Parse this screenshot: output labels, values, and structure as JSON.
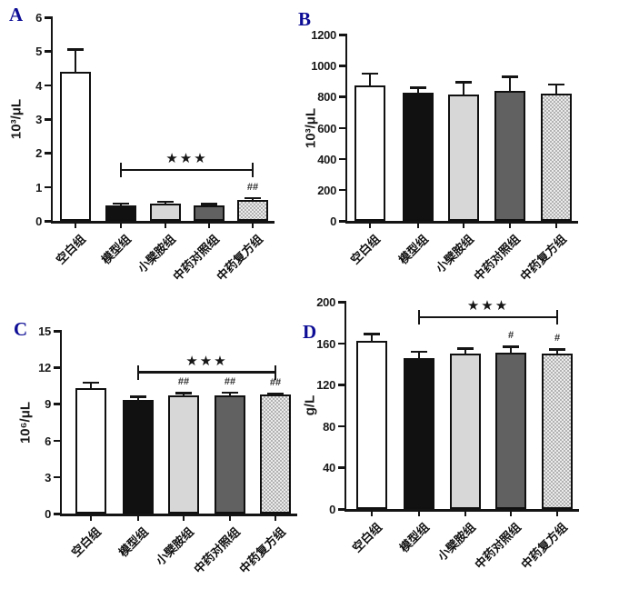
{
  "figure": {
    "background": "#ffffff",
    "panel_letter_color": "#0d0d96",
    "bar_border_color": "#101010",
    "star_color": "#161616"
  },
  "chart_data": [
    {
      "type": "bar",
      "panel": "A",
      "title": "",
      "xlabel": "",
      "ylabel": "10³/μL",
      "ylim": [
        0,
        6
      ],
      "yticks": [
        0,
        1,
        2,
        3,
        4,
        5,
        6
      ],
      "grid": false,
      "legend_position": "none",
      "categories": [
        "空白组",
        "模型组",
        "小檗胺组",
        "中药对照组",
        "中药复方组"
      ],
      "values": [
        4.4,
        0.45,
        0.52,
        0.45,
        0.62
      ],
      "errors_plus": [
        0.65,
        0.07,
        0.05,
        0.05,
        0.06
      ],
      "bar_styles": [
        "white",
        "black",
        "lightgray",
        "darkgray",
        "checker"
      ],
      "bar_annotations": [
        "",
        "",
        "",
        "",
        "##"
      ],
      "significance_bracket": {
        "label": "★★★",
        "from_index": 1,
        "to_index": 4,
        "y_value": 1.5
      }
    },
    {
      "type": "bar",
      "panel": "B",
      "title": "",
      "xlabel": "",
      "ylabel": "10³/μL",
      "ylim": [
        0,
        1200
      ],
      "yticks": [
        0,
        200,
        400,
        600,
        800,
        1000,
        1200
      ],
      "grid": false,
      "legend_position": "none",
      "categories": [
        "空白组",
        "模型组",
        "小檗胺组",
        "中药对照组",
        "中药复方组"
      ],
      "values": [
        875,
        825,
        815,
        840,
        820
      ],
      "errors_plus": [
        75,
        35,
        80,
        90,
        60
      ],
      "bar_styles": [
        "white",
        "black",
        "lightgray",
        "darkgray",
        "checker"
      ],
      "bar_annotations": [
        "",
        "",
        "",
        "",
        ""
      ],
      "significance_bracket": null
    },
    {
      "type": "bar",
      "panel": "C",
      "title": "",
      "xlabel": "",
      "ylabel": "10⁶/μL",
      "ylim": [
        0,
        15
      ],
      "yticks": [
        0,
        3,
        6,
        9,
        12,
        15
      ],
      "grid": false,
      "legend_position": "none",
      "categories": [
        "空白组",
        "模型组",
        "小檗胺组",
        "中药对照组",
        "中药复方组"
      ],
      "values": [
        10.3,
        9.35,
        9.7,
        9.7,
        9.75
      ],
      "errors_plus": [
        0.45,
        0.25,
        0.2,
        0.25,
        0.1
      ],
      "bar_styles": [
        "white",
        "black",
        "lightgray",
        "darkgray",
        "checker"
      ],
      "bar_annotations": [
        "",
        "",
        "##",
        "##",
        "##"
      ],
      "significance_bracket": {
        "label": "★★★",
        "from_index": 1,
        "to_index": 4,
        "y_value": 11.6
      }
    },
    {
      "type": "bar",
      "panel": "D",
      "title": "",
      "xlabel": "",
      "ylabel": "g/L",
      "ylim": [
        0,
        200
      ],
      "yticks": [
        0,
        40,
        80,
        120,
        160,
        200
      ],
      "grid": false,
      "legend_position": "none",
      "categories": [
        "空白组",
        "模型组",
        "小檗胺组",
        "中药对照组",
        "中药复方组"
      ],
      "values": [
        162,
        146,
        150,
        151,
        150
      ],
      "errors_plus": [
        7,
        6,
        5,
        6,
        4
      ],
      "bar_styles": [
        "white",
        "black",
        "lightgray",
        "darkgray",
        "checker"
      ],
      "bar_annotations": [
        "",
        "",
        "",
        "#",
        "#"
      ],
      "significance_bracket": {
        "label": "★★★",
        "from_index": 1,
        "to_index": 4,
        "y_value": 185
      }
    }
  ]
}
